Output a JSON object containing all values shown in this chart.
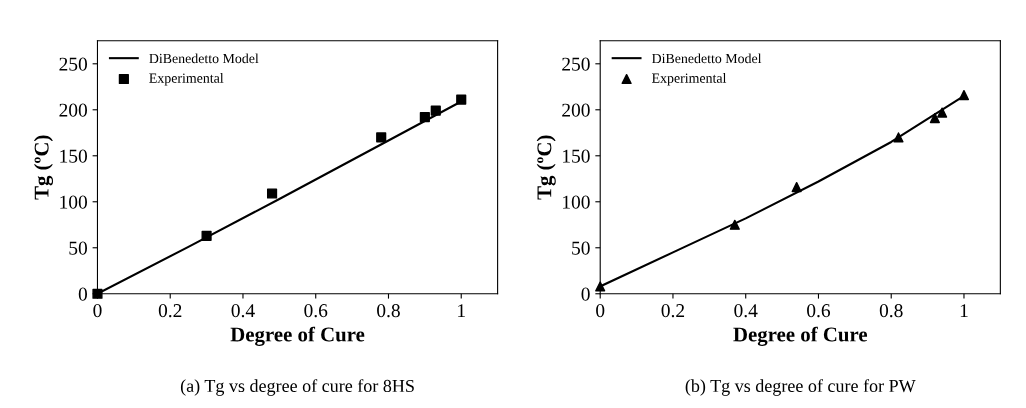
{
  "chart_data": [
    {
      "type": "scatter",
      "xlabel": "Degree of Cure",
      "ylabel": "Tg (ºC)",
      "annotations": [
        "(a) Tg vs degree of cure for 8HS"
      ],
      "xlim": [
        0,
        1.1
      ],
      "ylim": [
        0,
        275
      ],
      "xticks": [
        0,
        0.2,
        0.4,
        0.6,
        0.8,
        1
      ],
      "yticks": [
        0,
        50,
        100,
        150,
        200,
        250
      ],
      "legend": "top left",
      "grid": false,
      "series": [
        {
          "name": "DiBenedetto Model",
          "type": "line",
          "color": "#000000",
          "line_style": "solid",
          "marker": "none",
          "x": [
            0,
            0.25,
            0.5,
            0.75,
            1.0
          ],
          "values": [
            0,
            51,
            103,
            156,
            209
          ]
        },
        {
          "name": "Experimental",
          "color": "#000000",
          "marker": "square",
          "x": [
            0,
            0.3,
            0.48,
            0.78,
            0.9,
            0.93,
            1.0
          ],
          "values": [
            0,
            63,
            109,
            170,
            192,
            199,
            211
          ]
        }
      ]
    },
    {
      "type": "scatter",
      "xlabel": "Degree of Cure",
      "ylabel": "Tg (ºC)",
      "annotations": [
        "(b) Tg vs degree of cure for PW"
      ],
      "xlim": [
        0,
        1.1
      ],
      "ylim": [
        0,
        275
      ],
      "xticks": [
        0,
        0.2,
        0.4,
        0.6,
        0.8,
        1
      ],
      "yticks": [
        0,
        50,
        100,
        150,
        200,
        250
      ],
      "legend": "top left",
      "grid": false,
      "series": [
        {
          "name": "DiBenedetto Model",
          "type": "line",
          "color": "#000000",
          "line_style": "solid",
          "marker": "none",
          "x": [
            0,
            0.2,
            0.4,
            0.6,
            0.8,
            1.0
          ],
          "values": [
            8,
            45,
            82,
            122,
            165,
            215
          ]
        },
        {
          "name": "Experimental",
          "color": "#000000",
          "marker": "triangle",
          "x": [
            0,
            0.37,
            0.54,
            0.82,
            0.92,
            0.94,
            1.0
          ],
          "values": [
            8,
            75,
            116,
            170,
            191,
            197,
            216
          ]
        }
      ]
    }
  ]
}
